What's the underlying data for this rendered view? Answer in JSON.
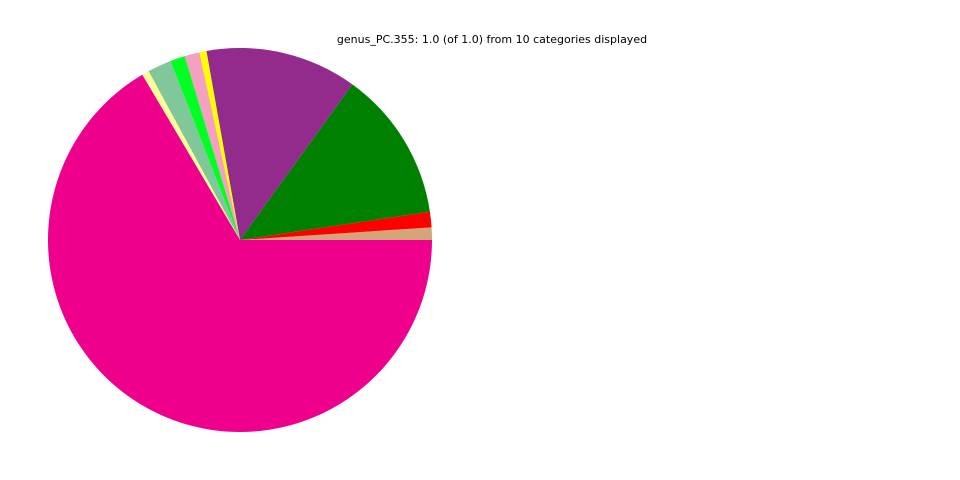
{
  "chart_data": {
    "type": "pie",
    "title": "genus_PC.355: 1.0 (of 1.0) from 10 categories displayed",
    "total": 1.0,
    "start_angle_deg": 0,
    "direction": "counterclockwise",
    "slices": [
      {
        "value": 0.0105,
        "color": "#d2a679"
      },
      {
        "value": 0.013,
        "color": "#ff0000"
      },
      {
        "value": 0.127,
        "color": "#008000"
      },
      {
        "value": 0.1275,
        "color": "#922b8c"
      },
      {
        "value": 0.006,
        "color": "#ffff00"
      },
      {
        "value": 0.0125,
        "color": "#f4a0c0"
      },
      {
        "value": 0.0125,
        "color": "#00ff22"
      },
      {
        "value": 0.02,
        "color": "#80c89a"
      },
      {
        "value": 0.006,
        "color": "#ffff99"
      },
      {
        "value": 0.665,
        "color": "#ee008c"
      }
    ]
  }
}
